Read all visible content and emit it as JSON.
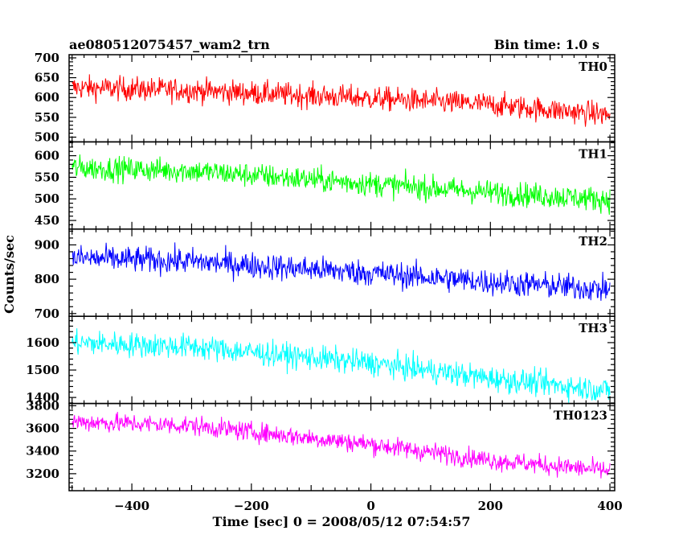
{
  "header": {
    "title_left": "ae080512075457_wam2_trn",
    "title_right": "Bin time: 1.0 s"
  },
  "chart_data": {
    "type": "line",
    "title": "ae080512075457_wam2_trn",
    "subtitle": "Bin time: 1.0 s",
    "xlabel": "Time [sec] 0 = 2008/05/12 07:54:57",
    "ylabel": "Counts/sec",
    "xlim": [
      -505,
      408
    ],
    "x_ticks": [
      -400,
      -200,
      0,
      200,
      400
    ],
    "x_step": 1,
    "x_start": -500,
    "x_end": 400,
    "panels": [
      {
        "name": "TH0",
        "color": "#ff0000",
        "ylim": [
          488,
          708
        ],
        "y_ticks": [
          500,
          550,
          600,
          650,
          700
        ],
        "trend": [
          {
            "x": -500,
            "y": 625
          },
          {
            "x": -300,
            "y": 618
          },
          {
            "x": 0,
            "y": 598
          },
          {
            "x": 200,
            "y": 582
          },
          {
            "x": 400,
            "y": 556
          }
        ],
        "noise_amplitude": 30
      },
      {
        "name": "TH1",
        "color": "#00ff00",
        "ylim": [
          430,
          632
        ],
        "y_ticks": [
          450,
          500,
          550,
          600
        ],
        "trend": [
          {
            "x": -500,
            "y": 572
          },
          {
            "x": -300,
            "y": 565
          },
          {
            "x": 0,
            "y": 535
          },
          {
            "x": 200,
            "y": 515
          },
          {
            "x": 400,
            "y": 498
          }
        ],
        "noise_amplitude": 28
      },
      {
        "name": "TH2",
        "color": "#0000ff",
        "ylim": [
          692,
          946
        ],
        "y_ticks": [
          700,
          800,
          900
        ],
        "trend": [
          {
            "x": -500,
            "y": 862
          },
          {
            "x": -300,
            "y": 852
          },
          {
            "x": 0,
            "y": 818
          },
          {
            "x": 200,
            "y": 792
          },
          {
            "x": 400,
            "y": 770
          }
        ],
        "noise_amplitude": 38
      },
      {
        "name": "TH3",
        "color": "#00ffff",
        "ylim": [
          1378,
          1696
        ],
        "y_ticks": [
          1400,
          1500,
          1600
        ],
        "trend": [
          {
            "x": -500,
            "y": 1600
          },
          {
            "x": -300,
            "y": 1585
          },
          {
            "x": 0,
            "y": 1525
          },
          {
            "x": 200,
            "y": 1470
          },
          {
            "x": 400,
            "y": 1425
          }
        ],
        "noise_amplitude": 45
      },
      {
        "name": "TH0123",
        "color": "#ff00ff",
        "ylim": [
          3050,
          3820
        ],
        "y_ticks": [
          3200,
          3400,
          3600,
          3800
        ],
        "trend": [
          {
            "x": -500,
            "y": 3660
          },
          {
            "x": -300,
            "y": 3625
          },
          {
            "x": 0,
            "y": 3460
          },
          {
            "x": 200,
            "y": 3320
          },
          {
            "x": 400,
            "y": 3225
          }
        ],
        "noise_amplitude": 85
      }
    ]
  }
}
